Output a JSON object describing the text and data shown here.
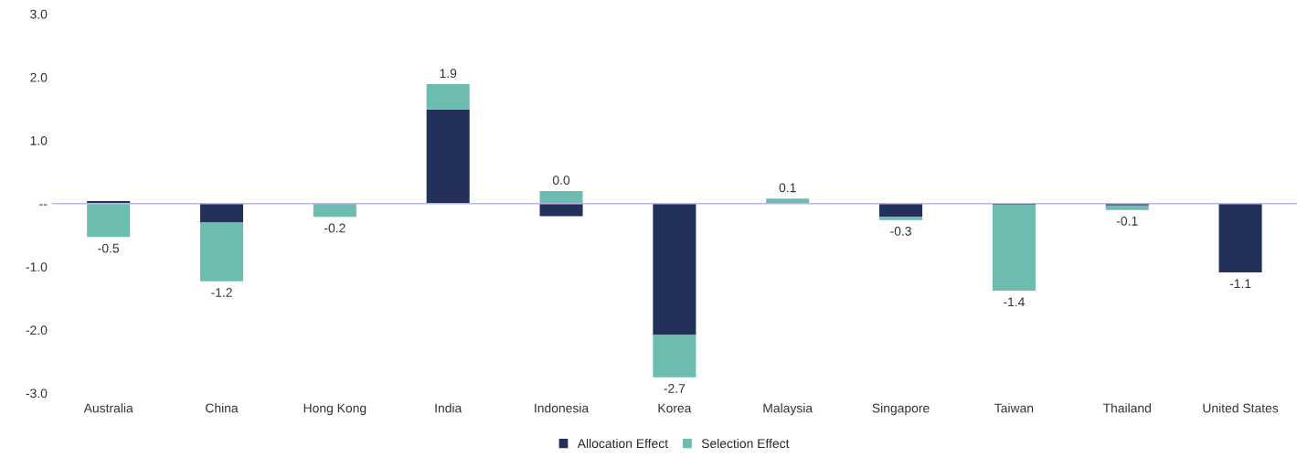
{
  "chart_data": {
    "type": "bar",
    "stacked": true,
    "categories": [
      "Australia",
      "China",
      "Hong Kong",
      "India",
      "Indonesia",
      "Korea",
      "Malaysia",
      "Singapore",
      "Taiwan",
      "Thailand",
      "United States"
    ],
    "series": [
      {
        "name": "Allocation Effect",
        "color": "#22305a",
        "values": [
          0.04,
          -0.3,
          null,
          1.49,
          -0.2,
          -2.08,
          null,
          -0.21,
          -0.02,
          -0.03,
          -1.09
        ]
      },
      {
        "name": "Selection Effect",
        "color": "#6cbcb0",
        "values": [
          -0.53,
          -0.93,
          -0.21,
          0.4,
          0.2,
          -0.67,
          0.08,
          -0.05,
          -1.36,
          -0.07,
          null
        ]
      }
    ],
    "totals": [
      "-0.5",
      "-1.2",
      "-0.2",
      "1.9",
      "0.0",
      "-2.7",
      "0.1",
      "-0.3",
      "-1.4",
      "-0.1",
      "-1.1"
    ],
    "ylim": [
      -3.0,
      3.0
    ],
    "yticks": [
      {
        "value": 3,
        "label": "3.0"
      },
      {
        "value": 2,
        "label": "2.0"
      },
      {
        "value": 1,
        "label": "1.0"
      },
      {
        "value": 0,
        "label": "--"
      },
      {
        "value": -1,
        "label": "-1.0"
      },
      {
        "value": -2,
        "label": "-2.0"
      },
      {
        "value": -3,
        "label": "-3.0"
      }
    ],
    "ref_lines": [
      {
        "axis": "y",
        "value": 0,
        "color": "#b4b9e0"
      }
    ],
    "grid": false,
    "legend": "bottom"
  }
}
